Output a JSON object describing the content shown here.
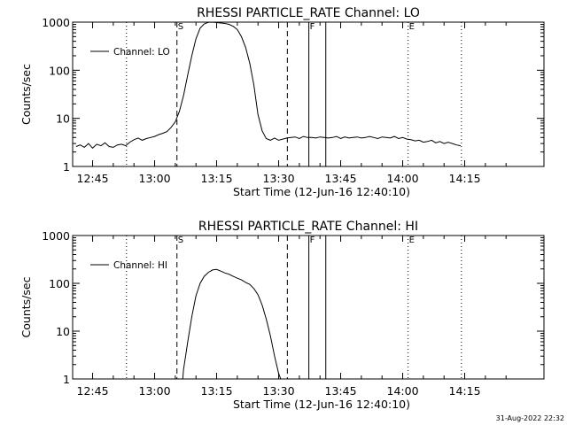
{
  "chart_data": [
    {
      "type": "line",
      "title": "RHESSI PARTICLE_RATE Channel: LO",
      "xlabel": "Start Time (12-Jun-16 12:40:10)",
      "ylabel": "Counts/sec",
      "legend": "Channel: LO",
      "legend_position": "top-left",
      "yscale": "log",
      "ylim": [
        1,
        1000
      ],
      "xlim_min": [
        40.17,
        154.17
      ],
      "ytick_values": [
        1,
        10,
        100,
        1000
      ],
      "ytick_labels": [
        "1",
        "10",
        "100",
        "1000"
      ],
      "xtick_values": [
        45,
        60,
        75,
        90,
        105,
        120,
        135
      ],
      "xtick_labels": [
        "12:45",
        "13:00",
        "13:15",
        "13:30",
        "13:45",
        "14:00",
        "14:15"
      ],
      "dotted_lines_min": [
        53.2,
        121.3,
        134.2
      ],
      "dashed_lines_min": [
        65.4,
        92.1
      ],
      "solid_lines_min": [
        97.3,
        101.4
      ],
      "markers": [
        {
          "label": "S",
          "x": 65.4
        },
        {
          "label": "F",
          "x": 97.3
        },
        {
          "label": "E",
          "x": 121.3
        }
      ],
      "series": [
        {
          "name": "Channel: LO",
          "x": [
            41,
            42,
            43,
            44,
            45,
            46,
            47,
            48,
            49,
            50,
            51,
            52,
            53,
            54,
            55,
            56,
            57,
            58,
            59,
            60,
            61,
            62,
            63,
            64,
            65,
            66,
            67,
            68,
            69,
            70,
            71,
            72,
            73,
            74,
            75,
            76,
            77,
            78,
            79,
            80,
            81,
            82,
            83,
            84,
            85,
            86,
            87,
            88,
            89,
            90,
            91,
            92,
            93,
            94,
            95,
            96,
            97,
            98,
            99,
            100,
            101,
            102,
            103,
            104,
            105,
            106,
            107,
            108,
            109,
            110,
            111,
            112,
            113,
            114,
            115,
            116,
            117,
            118,
            119,
            120,
            121,
            122,
            123,
            124,
            125,
            126,
            127,
            128,
            129,
            130,
            131,
            132,
            133,
            134
          ],
          "values": [
            2.6,
            2.8,
            2.5,
            3.0,
            2.4,
            2.9,
            2.7,
            3.1,
            2.6,
            2.5,
            2.8,
            2.9,
            2.7,
            3.2,
            3.6,
            3.9,
            3.5,
            3.8,
            4.0,
            4.2,
            4.6,
            4.9,
            5.3,
            6.5,
            8.5,
            14,
            30,
            80,
            200,
            450,
            750,
            920,
            990,
            1000,
            980,
            960,
            940,
            900,
            820,
            700,
            500,
            300,
            140,
            50,
            12,
            5.5,
            3.8,
            3.5,
            3.9,
            3.5,
            3.7,
            3.9,
            4.0,
            4.1,
            3.8,
            4.2,
            4.0,
            4.0,
            3.9,
            4.1,
            4.0,
            3.9,
            4.0,
            4.2,
            3.8,
            4.1,
            3.9,
            4.0,
            4.1,
            3.9,
            4.0,
            4.2,
            4.0,
            3.8,
            4.1,
            4.0,
            3.9,
            4.2,
            3.8,
            4.0,
            3.7,
            3.6,
            3.4,
            3.5,
            3.2,
            3.3,
            3.5,
            3.1,
            3.3,
            3.0,
            3.2,
            3.0,
            2.8,
            2.7
          ]
        }
      ]
    },
    {
      "type": "line",
      "title": "RHESSI PARTICLE_RATE Channel: HI",
      "xlabel": "Start Time (12-Jun-16 12:40:10)",
      "ylabel": "Counts/sec",
      "legend": "Channel: HI",
      "legend_position": "top-left",
      "yscale": "log",
      "ylim": [
        1,
        1000
      ],
      "xlim_min": [
        40.17,
        154.17
      ],
      "ytick_values": [
        1,
        10,
        100,
        1000
      ],
      "ytick_labels": [
        "1",
        "10",
        "100",
        "1000"
      ],
      "xtick_values": [
        45,
        60,
        75,
        90,
        105,
        120,
        135
      ],
      "xtick_labels": [
        "12:45",
        "13:00",
        "13:15",
        "13:30",
        "13:45",
        "14:00",
        "14:15"
      ],
      "dotted_lines_min": [
        53.2,
        121.3,
        134.2
      ],
      "dashed_lines_min": [
        65.4,
        92.1
      ],
      "solid_lines_min": [
        97.3,
        101.4
      ],
      "markers": [
        {
          "label": "S",
          "x": 65.4
        },
        {
          "label": "F",
          "x": 97.3
        },
        {
          "label": "E",
          "x": 121.3
        }
      ],
      "series": [
        {
          "name": "Channel: HI",
          "x": [
            66.8,
            67,
            67.5,
            68,
            69,
            70,
            71,
            72,
            73,
            74,
            75,
            76,
            77,
            78,
            79,
            80,
            81,
            82,
            83,
            84,
            85,
            86,
            87,
            88,
            89,
            90,
            90.5
          ],
          "values": [
            1,
            1.6,
            3,
            6,
            20,
            55,
            100,
            140,
            170,
            190,
            195,
            180,
            165,
            155,
            140,
            128,
            118,
            105,
            95,
            78,
            58,
            35,
            18,
            8,
            3,
            1.3,
            1
          ]
        }
      ]
    }
  ],
  "timestamp": "31-Aug-2022 22:32"
}
